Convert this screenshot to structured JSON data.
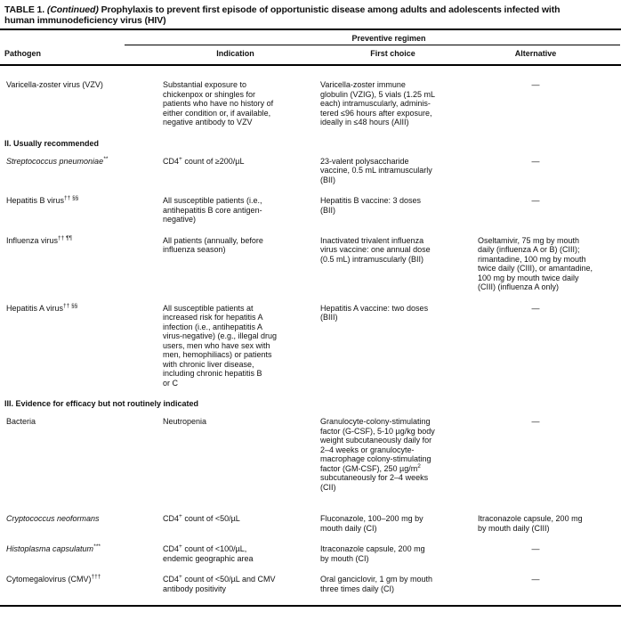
{
  "table": {
    "title": {
      "label": "TABLE 1.",
      "continued": "(Continued)",
      "line1_rest": "Prophylaxis to prevent first episode of opportunistic disease among adults and adolescents infected with",
      "line2": "human immunodeficiency virus (HIV)"
    },
    "spanner": "Preventive regimen",
    "columns": {
      "pathogen": "Pathogen",
      "indication": "Indication",
      "first_choice": "First choice",
      "alternative": "Alternative"
    },
    "rows": [
      {
        "type": "data",
        "pathogen": "Varicella-zoster virus (VZV)",
        "indication": "Substantial exposure to\nchickenpox or shingles for\npatients who have no history of\neither condition or, if available,\nnegative antibody to VZV",
        "first_choice": "Varicella-zoster immune\nglobulin (VZIG), 5 vials (1.25 mL\neach) intramuscularly, adminis-\ntered ≤96 hours after exposure,\nideally in ≤48 hours (AIII)",
        "alternative": "—"
      },
      {
        "type": "section",
        "label": "II. Usually recommended"
      },
      {
        "type": "data",
        "pathogen": "Streptococcus pneumoniae^{**}",
        "indication": "CD4^{+} count of ≥200/µL",
        "first_choice": "23-valent polysaccharide\nvaccine, 0.5 mL intramuscularly\n(BII)",
        "alternative": "—"
      },
      {
        "type": "data",
        "pathogen": "Hepatitis B virus^{†† §§}",
        "indication": "All susceptible patients (i.e.,\nantihepatitis B core antigen-\nnegative)",
        "first_choice": "Hepatitis B vaccine: 3 doses\n(BII)",
        "alternative": "—"
      },
      {
        "type": "data",
        "pathogen": "Influenza virus^{†† ¶¶}",
        "indication": "All patients (annually, before\ninfluenza season)",
        "first_choice": "Inactivated trivalent influenza\nvirus vaccine: one annual dose\n(0.5 mL) intramuscularly (BII)",
        "alternative": "Oseltamivir, 75 mg by mouth\ndaily (influenza A or B) (CIII);\nrimantadine, 100 mg by mouth\ntwice daily (CIII), or amantadine,\n100 mg by mouth twice daily\n(CIII) (influenza A only)"
      },
      {
        "type": "data",
        "pathogen": "Hepatitis A virus^{†† §§}",
        "indication": "All susceptible patients at\nincreased risk for hepatitis A\ninfection (i.e., antihepatitis A\nvirus-negative) (e.g., illegal drug\nusers, men who have sex with\nmen, hemophiliacs) or patients\nwith chronic liver disease,\nincluding chronic hepatitis B\nor C",
        "first_choice": "Hepatitis A vaccine: two doses\n(BIII)",
        "alternative": "—"
      },
      {
        "type": "section",
        "label": "III. Evidence for efficacy but not routinely indicated"
      },
      {
        "type": "data",
        "pathogen": "Bacteria",
        "indication": "Neutropenia",
        "first_choice": "Granulocyte-colony-stimulating\nfactor (G-CSF), 5-10 µg/kg body\nweight subcutaneously daily for\n2–4 weeks or granulocyte-\nmacrophage colony-stimulating\nfactor (GM-CSF), 250 µg/m^{2}\nsubcutaneously for 2–4 weeks\n(CII)",
        "alternative": "—"
      },
      {
        "type": "data",
        "pathogen": "Cryptococcus neoformans",
        "indication": "CD4^{+} count of <50/µL",
        "first_choice": "Fluconazole, 100–200 mg by\nmouth daily (CI)",
        "alternative": "Itraconazole capsule, 200 mg\nby mouth daily (CIII)"
      },
      {
        "type": "data",
        "pathogen": "Histoplasma capsulatum^{***}",
        "indication": "CD4^{+} count of <100/µL,\nendemic geographic area",
        "first_choice": "Itraconazole capsule, 200 mg\nby mouth (CI)",
        "alternative": "—"
      },
      {
        "type": "data",
        "pathogen": "Cytomegalovirus (CMV)^{†††}",
        "indication": "CD4^{+} count of <50/µL and CMV\nantibody positivity",
        "first_choice": "Oral ganciclovir, 1 gm by mouth\nthree times daily (CI)",
        "alternative": "—"
      }
    ]
  }
}
